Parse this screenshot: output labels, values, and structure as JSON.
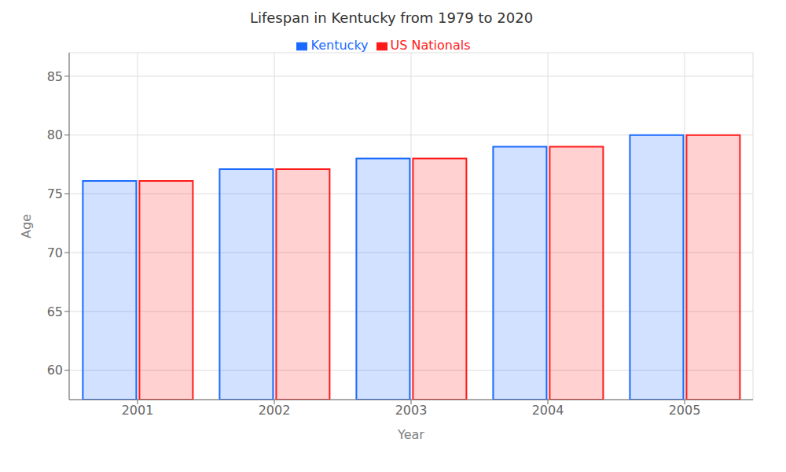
{
  "chart_data": {
    "type": "bar",
    "title": "Lifespan in Kentucky from 1979 to 2020",
    "x_label": "Year",
    "y_label": "Age",
    "categories": [
      "2001",
      "2002",
      "2003",
      "2004",
      "2005"
    ],
    "series": [
      {
        "name": "Kentucky",
        "color": "#1a6aff",
        "values": [
          76.1,
          77.1,
          78.0,
          79.0,
          80.0
        ]
      },
      {
        "name": "US Nationals",
        "color": "#ff1a1a",
        "values": [
          76.1,
          77.1,
          78.0,
          79.0,
          80.0
        ]
      }
    ],
    "ylim": [
      57.5,
      87
    ],
    "yticks": [
      60,
      65,
      70,
      75,
      80,
      85
    ],
    "grid": true,
    "legend": "top"
  }
}
